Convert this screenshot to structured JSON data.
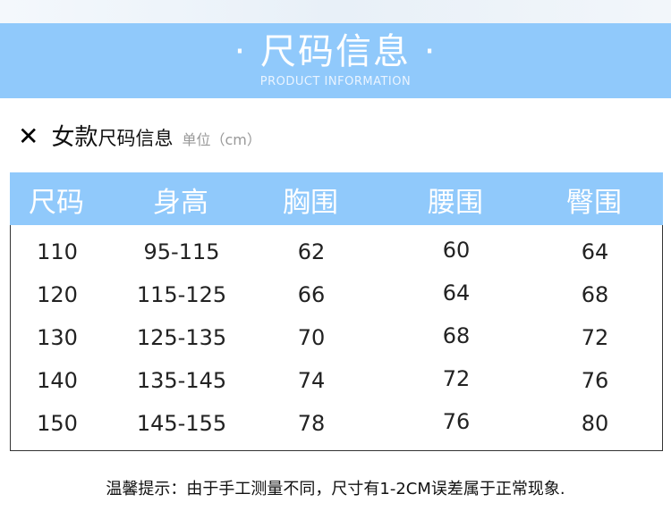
{
  "banner": {
    "title": "· 尺码信息 ·",
    "subtitle": "PRODUCT INFORMATION",
    "color": "#90c9fb"
  },
  "section": {
    "icon": "x-icon",
    "mark": "✕",
    "title_main": "女款",
    "title_rest": "尺码信息",
    "unit": "单位（cm）"
  },
  "table": {
    "headers": [
      "尺码",
      "身高",
      "胸围",
      "腰围",
      "臀围"
    ],
    "rows": [
      [
        "110",
        "95-115",
        "62",
        "60",
        "64"
      ],
      [
        "120",
        "115-125",
        "66",
        "64",
        "68"
      ],
      [
        "130",
        "125-135",
        "70",
        "68",
        "72"
      ],
      [
        "140",
        "135-145",
        "74",
        "72",
        "76"
      ],
      [
        "150",
        "145-155",
        "78",
        "76",
        "80"
      ]
    ]
  },
  "note": "温馨提示：由于手工测量不同，尺寸有1-2CM误差属于正常现象."
}
